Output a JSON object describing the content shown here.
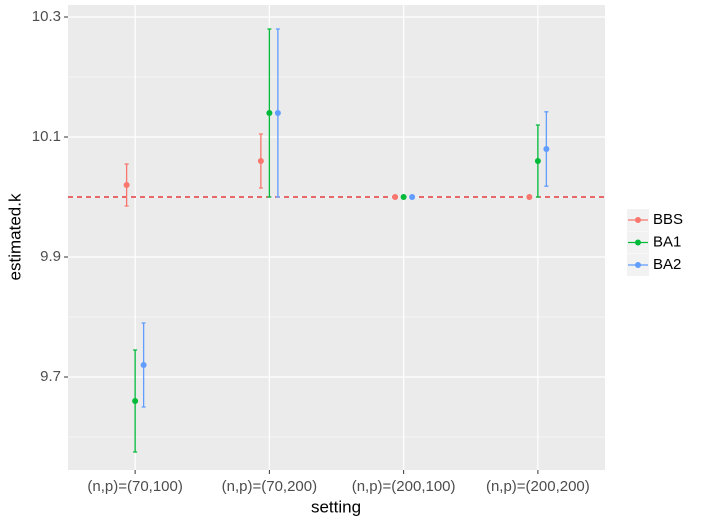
{
  "chart_data": {
    "type": "errorbar",
    "x_label": "setting",
    "y_label": "estimated.k",
    "categories": [
      "(n,p)=(70,100)",
      "(n,p)=(70,200)",
      "(n,p)=(200,100)",
      "(n,p)=(200,200)"
    ],
    "series": [
      {
        "name": "BBS",
        "color": "#F8766D",
        "values": [
          10.02,
          10.06,
          10.0,
          10.0
        ],
        "errors": [
          0.035,
          0.045,
          0,
          0
        ]
      },
      {
        "name": "BA1",
        "color": "#00BA38",
        "values": [
          9.66,
          10.14,
          10.0,
          10.06
        ],
        "errors": [
          0.085,
          0.14,
          0,
          0.06
        ]
      },
      {
        "name": "BA2",
        "color": "#619CFF",
        "values": [
          9.72,
          10.14,
          10.0,
          10.08
        ],
        "errors": [
          0.07,
          0.14,
          0,
          0.062
        ]
      }
    ],
    "hline": 10.0,
    "hline_color": "#E41A1C",
    "ylim": [
      9.545,
      10.32
    ],
    "yticks": [
      9.7,
      9.9,
      10.1,
      10.3
    ],
    "minor_yticks": [
      9.6,
      9.8,
      10.0,
      10.2
    ],
    "grid": true,
    "legend": "right"
  }
}
